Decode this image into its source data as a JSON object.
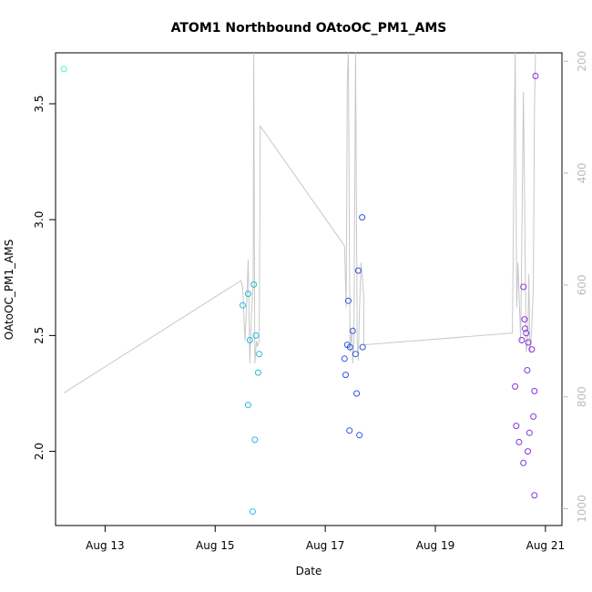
{
  "chart_data": {
    "type": "scatter",
    "title": "ATOM1 Northbound OAtoOC_PM1_AMS",
    "xlabel": "Date",
    "ylabel": "OAtoOC_PM1_AMS",
    "x_ticks": [
      "Aug 13",
      "Aug 15",
      "Aug 17",
      "Aug 19",
      "Aug 21"
    ],
    "xlim": [
      12.1,
      21.3
    ],
    "ylim": [
      1.68,
      3.72
    ],
    "y_ticks": [
      "2.0",
      "2.5",
      "3.0",
      "3.5"
    ],
    "right_axis": {
      "ylabel": "",
      "ylim": [
        1030,
        185
      ],
      "ticks": [
        "200",
        "400",
        "600",
        "800",
        "1000"
      ],
      "color": "#bbbbbb"
    },
    "grid": false,
    "series": [
      {
        "color": "#33ffaa",
        "points": [
          [
            12.25,
            3.65
          ]
        ]
      },
      {
        "color": "#22bbdd",
        "points": [
          [
            15.5,
            2.63
          ],
          [
            15.6,
            2.68
          ],
          [
            15.6,
            2.2
          ],
          [
            15.63,
            2.48
          ],
          [
            15.68,
            1.74
          ],
          [
            15.7,
            2.72
          ],
          [
            15.72,
            2.05
          ],
          [
            15.74,
            2.5
          ],
          [
            15.78,
            2.34
          ],
          [
            15.8,
            2.42
          ]
        ]
      },
      {
        "color": "#3355dd",
        "points": [
          [
            17.35,
            2.4
          ],
          [
            17.37,
            2.33
          ],
          [
            17.4,
            2.46
          ],
          [
            17.42,
            2.65
          ],
          [
            17.44,
            2.09
          ],
          [
            17.45,
            2.45
          ],
          [
            17.5,
            2.52
          ],
          [
            17.55,
            2.42
          ],
          [
            17.57,
            2.25
          ],
          [
            17.6,
            2.78
          ],
          [
            17.62,
            2.07
          ],
          [
            17.67,
            3.01
          ],
          [
            17.68,
            2.45
          ]
        ]
      },
      {
        "color": "#8833dd",
        "points": [
          [
            20.45,
            2.28
          ],
          [
            20.47,
            2.11
          ],
          [
            20.52,
            2.04
          ],
          [
            20.57,
            2.48
          ],
          [
            20.6,
            2.71
          ],
          [
            20.6,
            1.95
          ],
          [
            20.62,
            2.57
          ],
          [
            20.63,
            2.53
          ],
          [
            20.65,
            2.51
          ],
          [
            20.67,
            2.35
          ],
          [
            20.68,
            2.0
          ],
          [
            20.69,
            2.47
          ],
          [
            20.71,
            2.08
          ],
          [
            20.75,
            2.44
          ],
          [
            20.78,
            2.15
          ],
          [
            20.8,
            2.26
          ],
          [
            20.8,
            1.81
          ],
          [
            20.82,
            3.62
          ]
        ]
      }
    ],
    "line_series": {
      "color": "#c8c8c8",
      "axis": "right",
      "points": [
        [
          12.25,
          793
        ],
        [
          15.47,
          592
        ],
        [
          15.5,
          605
        ],
        [
          15.54,
          700
        ],
        [
          15.57,
          640
        ],
        [
          15.6,
          555
        ],
        [
          15.63,
          740
        ],
        [
          15.66,
          650
        ],
        [
          15.69,
          600
        ],
        [
          15.7,
          180
        ],
        [
          15.72,
          740
        ],
        [
          15.75,
          700
        ],
        [
          15.77,
          710
        ],
        [
          15.8,
          700
        ],
        [
          15.82,
          316
        ],
        [
          17.35,
          530
        ],
        [
          17.38,
          640
        ],
        [
          17.4,
          240
        ],
        [
          17.42,
          180
        ],
        [
          17.45,
          720
        ],
        [
          17.48,
          680
        ],
        [
          17.5,
          740
        ],
        [
          17.52,
          700
        ],
        [
          17.55,
          180
        ],
        [
          17.58,
          700
        ],
        [
          17.6,
          735
        ],
        [
          17.62,
          650
        ],
        [
          17.65,
          560
        ],
        [
          17.7,
          620
        ],
        [
          17.7,
          707
        ],
        [
          20.4,
          686
        ],
        [
          20.45,
          180
        ],
        [
          20.48,
          640
        ],
        [
          20.5,
          560
        ],
        [
          20.55,
          700
        ],
        [
          20.6,
          255
        ],
        [
          20.65,
          720
        ],
        [
          20.68,
          700
        ],
        [
          20.7,
          580
        ],
        [
          20.72,
          720
        ],
        [
          20.75,
          680
        ],
        [
          20.78,
          600
        ],
        [
          20.8,
          290
        ],
        [
          20.82,
          180
        ]
      ]
    }
  }
}
